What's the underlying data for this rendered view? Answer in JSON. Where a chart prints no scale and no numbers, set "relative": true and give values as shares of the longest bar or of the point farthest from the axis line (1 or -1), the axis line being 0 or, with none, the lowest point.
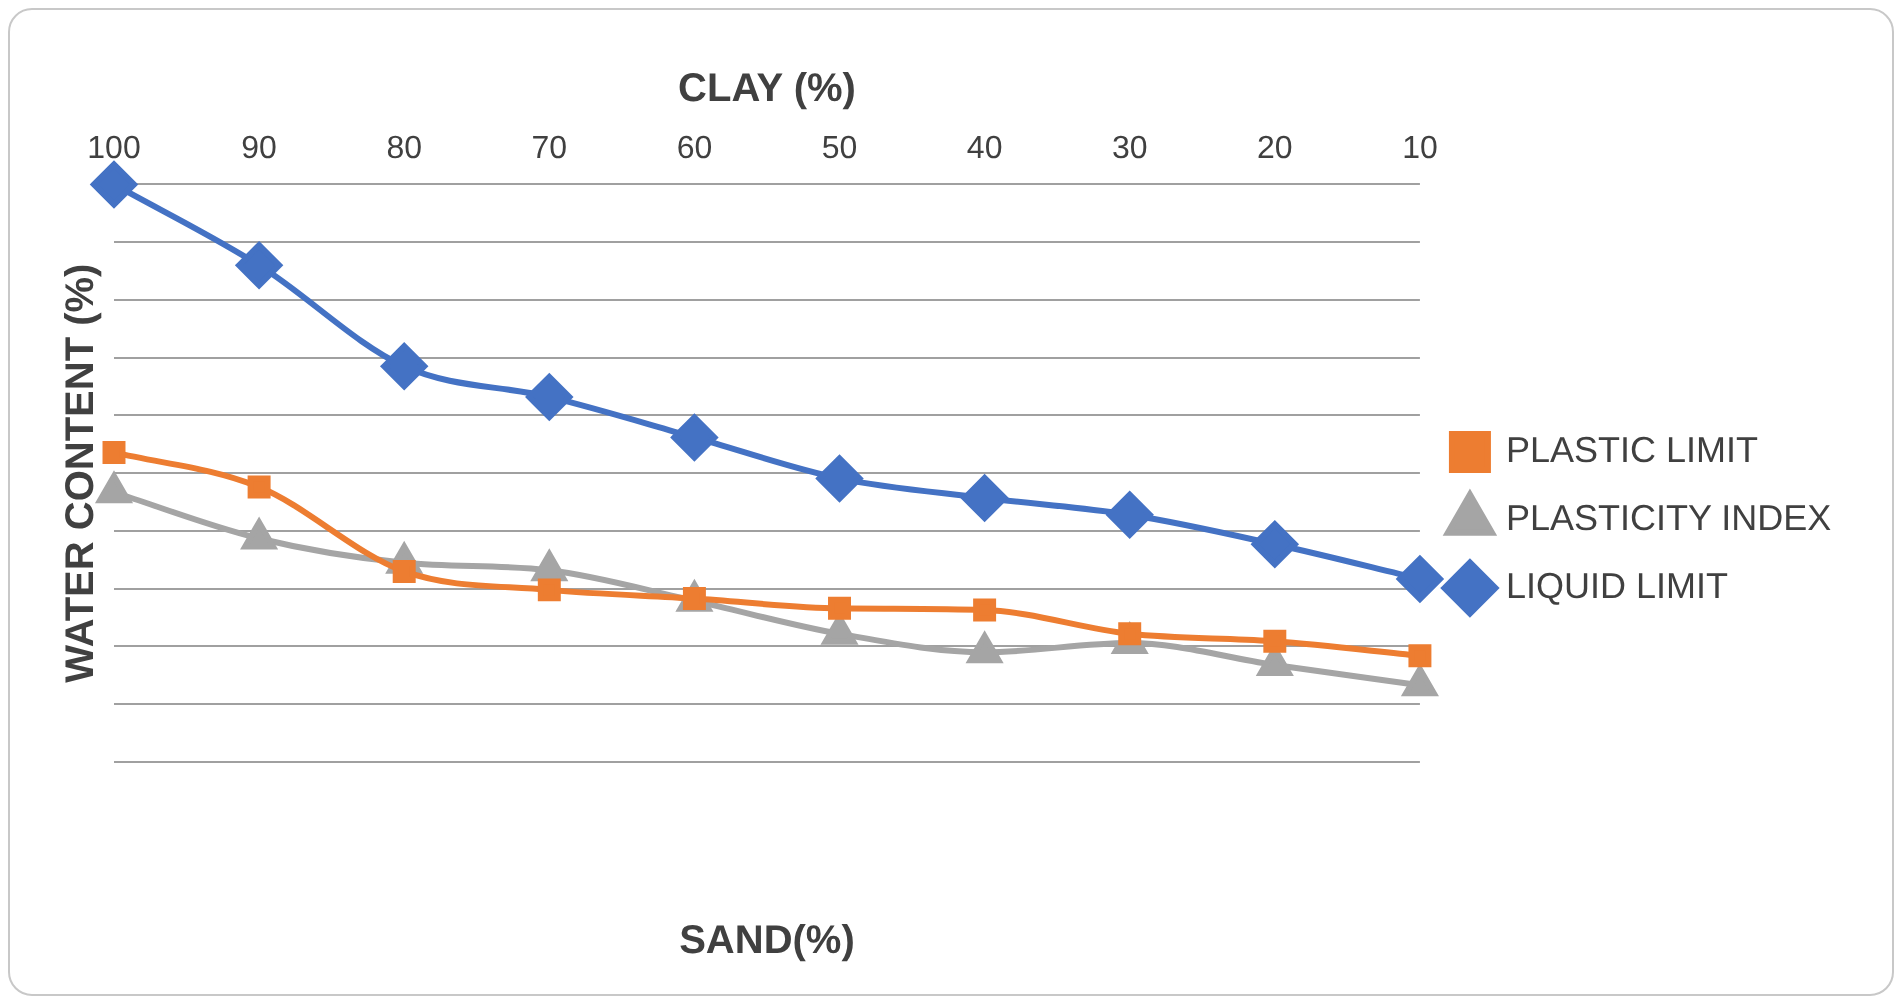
{
  "chart_data": {
    "type": "line",
    "relative": true,
    "xlabel": "SAND(%)",
    "x2label": "CLAY (%)",
    "ylabel": "WATER CONTENT (%)",
    "categories": [
      "100",
      "90",
      "80",
      "70",
      "60",
      "50",
      "40",
      "30",
      "20",
      "10"
    ],
    "series": [
      {
        "name": "PLASTIC LIMIT",
        "color": "#ed7d31",
        "marker": "square",
        "values": [
          0.536,
          0.476,
          0.33,
          0.298,
          0.283,
          0.266,
          0.263,
          0.222,
          0.209,
          0.184
        ]
      },
      {
        "name": "PLASTICITY INDEX",
        "color": "#a5a5a5",
        "marker": "triangle",
        "values": [
          0.467,
          0.387,
          0.345,
          0.332,
          0.279,
          0.222,
          0.19,
          0.206,
          0.168,
          0.133
        ]
      },
      {
        "name": "LIQUID LIMIT",
        "color": "#4472c4",
        "marker": "diamond",
        "values": [
          1,
          0.86,
          0.685,
          0.632,
          0.562,
          0.491,
          0.457,
          0.428,
          0.377,
          0.317
        ]
      }
    ],
    "grid": "y",
    "legend": "right",
    "line_style": "solid"
  }
}
